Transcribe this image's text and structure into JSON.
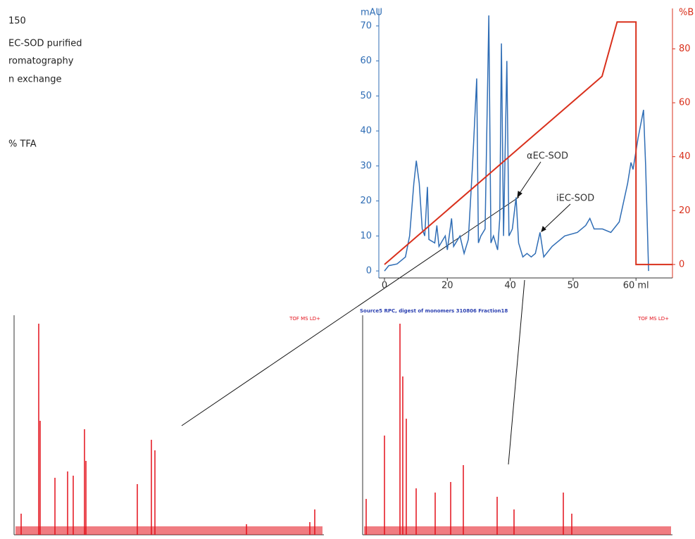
{
  "side_text": [
    "150",
    "EC-SOD purified",
    "romatography",
    "n exchange",
    "% TFA"
  ],
  "chart_data": [
    {
      "type": "line",
      "y_label": "mAU",
      "y2_label": "%B",
      "xlim": [
        0,
        68.7
      ],
      "ylim": [
        -2,
        75
      ],
      "y2lim": [
        -5,
        95
      ],
      "xticks": [
        {
          "value": 0,
          "label": "0"
        },
        {
          "value": 15,
          "label": "20"
        },
        {
          "value": 30,
          "label": "40"
        },
        {
          "value": 45,
          "label": "50"
        },
        {
          "value": 60,
          "label": "60 ml"
        }
      ],
      "yticks": [
        0,
        10,
        20,
        30,
        40,
        50,
        60,
        70
      ],
      "y2ticks": [
        0,
        20,
        40,
        60,
        80
      ],
      "annotations": [
        "αEC-SOD",
        "iEC-SOD"
      ],
      "series": [
        {
          "color": "#2f6db5",
          "x": [
            0,
            1,
            3,
            5,
            6,
            7,
            7.6,
            8.3,
            9,
            9.6,
            10.25,
            10.6,
            12,
            12.5,
            13,
            14,
            14.5,
            15,
            16,
            16.5,
            18,
            19,
            20,
            21,
            22,
            22.4,
            23,
            24,
            24.9,
            25.4,
            26,
            27,
            27.5,
            27.9,
            28.4,
            29.2,
            29.7,
            30.5,
            31.4,
            32,
            33,
            34,
            35,
            36,
            37.1,
            38,
            40,
            43,
            46,
            48,
            49,
            50,
            52,
            54,
            56,
            58,
            58.8,
            59.3,
            60.5,
            61.8,
            62.3,
            63
          ],
          "values": [
            0,
            1.5,
            2,
            4,
            10,
            25,
            31.5,
            25,
            12,
            10,
            24,
            9,
            8,
            13,
            7,
            9,
            10,
            6,
            15,
            7,
            10,
            5,
            9,
            30,
            55,
            8,
            10,
            12,
            73,
            8,
            10,
            6,
            15,
            65,
            10,
            60,
            10,
            12,
            21,
            8,
            4,
            5,
            4,
            5,
            11,
            4,
            7,
            10,
            11,
            13,
            15,
            12,
            12,
            11,
            14,
            25,
            31,
            29,
            38,
            46,
            30,
            0
          ]
        },
        {
          "color": "#d9301c",
          "axis": "y2",
          "x": [
            0,
            51.9,
            55.5,
            60,
            60,
            68.7
          ],
          "values": [
            0,
            69.8,
            90,
            90,
            0,
            0
          ]
        }
      ]
    },
    {
      "type": "stem",
      "corner_label": "TOF MS LD+",
      "color": "#e3101a",
      "xlim": [
        760,
        9010
      ],
      "ylim": [
        0,
        100
      ],
      "x": [
        948,
        1416,
        1454,
        1848,
        2185,
        2335,
        2635,
        2673,
        4041,
        4416,
        4510,
        6948,
        8635,
        8766
      ],
      "values": [
        10,
        100,
        54,
        27,
        30,
        28,
        50,
        35,
        24,
        45,
        40,
        5,
        6,
        12
      ]
    },
    {
      "type": "stem",
      "title": "Source5 RPC, digest of monomers 310806 Fraction18",
      "corner_label": "TOF MS LD+",
      "color": "#e3101a",
      "xlim": [
        1000,
        9000
      ],
      "ylim": [
        0,
        100
      ],
      "x": [
        1091,
        1564,
        1964,
        2036,
        2127,
        2382,
        2873,
        3273,
        3600,
        4473,
        4909,
        6182,
        6400
      ],
      "values": [
        17,
        47,
        100,
        75,
        55,
        22,
        20,
        25,
        33,
        18,
        12,
        20,
        10
      ]
    }
  ]
}
